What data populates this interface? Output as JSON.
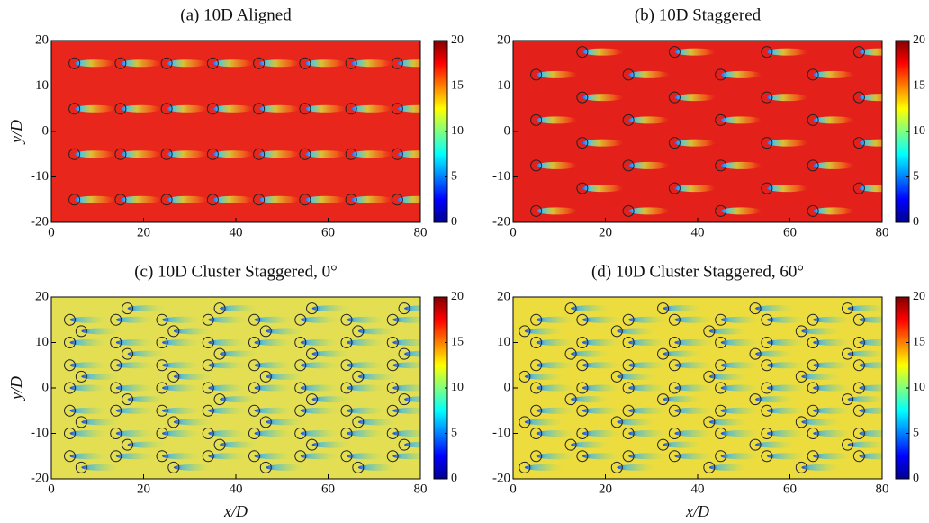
{
  "chart_data": [
    {
      "type": "contour",
      "title": "(a) 10D Aligned",
      "ylabel": "y/D",
      "xlim": [
        0,
        80
      ],
      "xticks": [
        0,
        20,
        40,
        60,
        80
      ],
      "ylim": [
        -20,
        20
      ],
      "yticks": [
        -20,
        -10,
        0,
        10,
        20
      ],
      "colorbar": {
        "lim": [
          0,
          20
        ],
        "ticks": [
          0,
          5,
          10,
          15,
          20
        ]
      },
      "field_color": "#e8261c",
      "turbines": [
        {
          "x": 5,
          "y": [
            15,
            5,
            -5,
            -15
          ]
        },
        {
          "x": 15,
          "y": [
            15,
            5,
            -5,
            -15
          ]
        },
        {
          "x": 25,
          "y": [
            15,
            5,
            -5,
            -15
          ]
        },
        {
          "x": 35,
          "y": [
            15,
            5,
            -5,
            -15
          ]
        },
        {
          "x": 45,
          "y": [
            15,
            5,
            -5,
            -15
          ]
        },
        {
          "x": 55,
          "y": [
            15,
            5,
            -5,
            -15
          ]
        },
        {
          "x": 65,
          "y": [
            15,
            5,
            -5,
            -15
          ]
        },
        {
          "x": 75,
          "y": [
            15,
            5,
            -5,
            -15
          ]
        }
      ]
    },
    {
      "type": "contour",
      "title": "(b) 10D Staggered",
      "xlim": [
        0,
        80
      ],
      "xticks": [
        0,
        20,
        40,
        60,
        80
      ],
      "ylim": [
        -20,
        20
      ],
      "yticks": [
        -20,
        -10,
        0,
        10,
        20
      ],
      "colorbar": {
        "lim": [
          0,
          20
        ],
        "ticks": [
          0,
          5,
          10,
          15,
          20
        ]
      },
      "field_color": "#e3201a",
      "turbines": [
        {
          "x": 5,
          "y": [
            12.5,
            2.5,
            -7.5,
            -17.5
          ]
        },
        {
          "x": 15,
          "y": [
            17.5,
            7.5,
            -2.5,
            -12.5
          ]
        },
        {
          "x": 25,
          "y": [
            12.5,
            2.5,
            -7.5,
            -17.5
          ]
        },
        {
          "x": 35,
          "y": [
            17.5,
            7.5,
            -2.5,
            -12.5
          ]
        },
        {
          "x": 45,
          "y": [
            12.5,
            2.5,
            -7.5,
            -17.5
          ]
        },
        {
          "x": 55,
          "y": [
            17.5,
            7.5,
            -2.5,
            -12.5
          ]
        },
        {
          "x": 65,
          "y": [
            12.5,
            2.5,
            -7.5,
            -17.5
          ]
        },
        {
          "x": 75,
          "y": [
            17.5,
            7.5,
            -2.5,
            -12.5
          ]
        }
      ]
    },
    {
      "type": "contour",
      "title": "(c) 10D Cluster Staggered, 0°",
      "xlabel": "x/D",
      "ylabel": "y/D",
      "xlim": [
        0,
        80
      ],
      "xticks": [
        0,
        20,
        40,
        60,
        80
      ],
      "ylim": [
        -20,
        20
      ],
      "yticks": [
        -20,
        -10,
        0,
        10,
        20
      ],
      "colorbar": {
        "lim": [
          0,
          20
        ],
        "ticks": [
          0,
          5,
          10,
          15,
          20
        ]
      },
      "field_color": "#e4df52",
      "turbines": [
        {
          "x": 4,
          "y": [
            15,
            10,
            5,
            0,
            -5,
            -10,
            -15
          ]
        },
        {
          "x": 6.5,
          "y": [
            12.5,
            2.5,
            -7.5,
            -17.5
          ]
        },
        {
          "x": 14,
          "y": [
            15,
            10,
            5,
            0,
            -5,
            -10,
            -15
          ]
        },
        {
          "x": 16.5,
          "y": [
            17.5,
            7.5,
            -2.5,
            -12.5
          ]
        },
        {
          "x": 24,
          "y": [
            15,
            10,
            5,
            0,
            -5,
            -10,
            -15
          ]
        },
        {
          "x": 26.5,
          "y": [
            12.5,
            2.5,
            -7.5,
            -17.5
          ]
        },
        {
          "x": 34,
          "y": [
            15,
            10,
            5,
            0,
            -5,
            -10,
            -15
          ]
        },
        {
          "x": 36.5,
          "y": [
            17.5,
            7.5,
            -2.5,
            -12.5
          ]
        },
        {
          "x": 44,
          "y": [
            15,
            10,
            5,
            0,
            -5,
            -10,
            -15
          ]
        },
        {
          "x": 46.5,
          "y": [
            12.5,
            2.5,
            -7.5,
            -17.5
          ]
        },
        {
          "x": 54,
          "y": [
            15,
            10,
            5,
            0,
            -5,
            -10,
            -15
          ]
        },
        {
          "x": 56.5,
          "y": [
            17.5,
            7.5,
            -2.5,
            -12.5
          ]
        },
        {
          "x": 64,
          "y": [
            15,
            10,
            5,
            0,
            -5,
            -10,
            -15
          ]
        },
        {
          "x": 66.5,
          "y": [
            12.5,
            2.5,
            -7.5,
            -17.5
          ]
        },
        {
          "x": 74,
          "y": [
            15,
            10,
            5,
            0,
            -5,
            -10,
            -15
          ]
        },
        {
          "x": 76.5,
          "y": [
            17.5,
            7.5,
            -2.5,
            -12.5
          ]
        }
      ]
    },
    {
      "type": "contour",
      "title": "(d) 10D Cluster Staggered, 60°",
      "xlabel": "x/D",
      "xlim": [
        0,
        80
      ],
      "xticks": [
        0,
        20,
        40,
        60,
        80
      ],
      "ylim": [
        -20,
        20
      ],
      "yticks": [
        -20,
        -10,
        0,
        10,
        20
      ],
      "colorbar": {
        "lim": [
          0,
          20
        ],
        "ticks": [
          0,
          5,
          10,
          15,
          20
        ]
      },
      "field_color": "#ecdc3e",
      "turbines": [
        {
          "x": 2.5,
          "y": [
            12.5,
            2.5,
            -7.5,
            -17.5
          ]
        },
        {
          "x": 5,
          "y": [
            15,
            10,
            5,
            0,
            -5,
            -10,
            -15
          ]
        },
        {
          "x": 12.5,
          "y": [
            17.5,
            7.5,
            -2.5,
            -12.5
          ]
        },
        {
          "x": 15,
          "y": [
            15,
            10,
            5,
            0,
            -5,
            -10,
            -15
          ]
        },
        {
          "x": 22.5,
          "y": [
            12.5,
            2.5,
            -7.5,
            -17.5
          ]
        },
        {
          "x": 25,
          "y": [
            15,
            10,
            5,
            0,
            -5,
            -10,
            -15
          ]
        },
        {
          "x": 32.5,
          "y": [
            17.5,
            7.5,
            -2.5,
            -12.5
          ]
        },
        {
          "x": 35,
          "y": [
            15,
            10,
            5,
            0,
            -5,
            -10,
            -15
          ]
        },
        {
          "x": 42.5,
          "y": [
            12.5,
            2.5,
            -7.5,
            -17.5
          ]
        },
        {
          "x": 45,
          "y": [
            15,
            10,
            5,
            0,
            -5,
            -10,
            -15
          ]
        },
        {
          "x": 52.5,
          "y": [
            17.5,
            7.5,
            -2.5,
            -12.5
          ]
        },
        {
          "x": 55,
          "y": [
            15,
            10,
            5,
            0,
            -5,
            -10,
            -15
          ]
        },
        {
          "x": 62.5,
          "y": [
            12.5,
            2.5,
            -7.5,
            -17.5
          ]
        },
        {
          "x": 65,
          "y": [
            15,
            10,
            5,
            0,
            -5,
            -10,
            -15
          ]
        },
        {
          "x": 72.5,
          "y": [
            17.5,
            7.5,
            -2.5,
            -12.5
          ]
        },
        {
          "x": 75,
          "y": [
            15,
            10,
            5,
            0,
            -5,
            -10,
            -15
          ]
        }
      ]
    }
  ]
}
